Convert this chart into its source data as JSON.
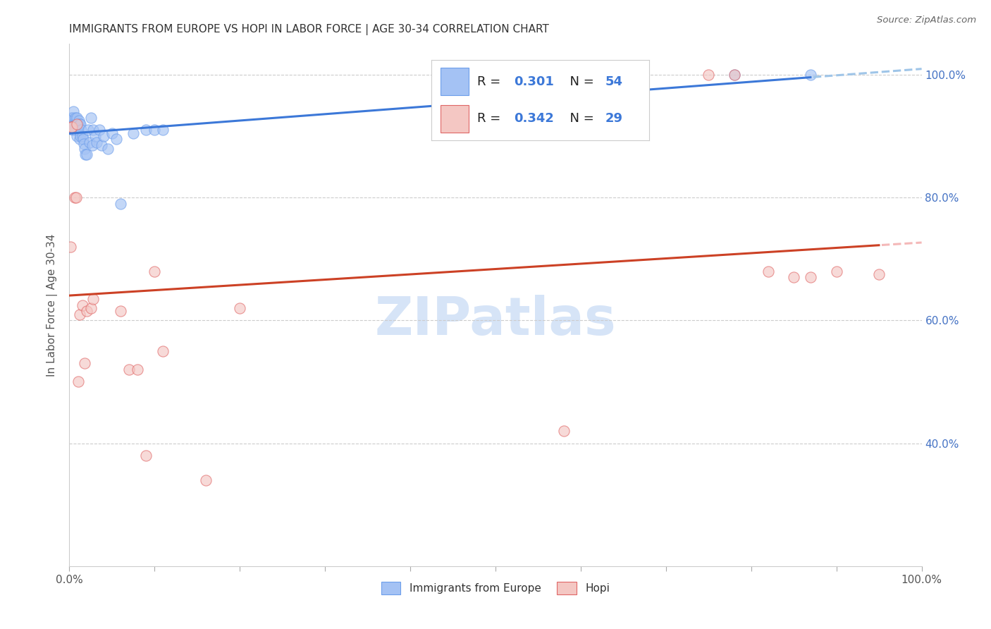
{
  "title": "IMMIGRANTS FROM EUROPE VS HOPI IN LABOR FORCE | AGE 30-34 CORRELATION CHART",
  "source": "Source: ZipAtlas.com",
  "ylabel": "In Labor Force | Age 30-34",
  "blue_label": "Immigrants from Europe",
  "pink_label": "Hopi",
  "blue_R": 0.301,
  "blue_N": 54,
  "pink_R": 0.342,
  "pink_N": 29,
  "blue_fill": "#a4c2f4",
  "blue_edge": "#6d9eeb",
  "pink_fill": "#f4c7c3",
  "pink_edge": "#e06666",
  "blue_line": "#3c78d8",
  "pink_line": "#cc4125",
  "blue_dash": "#9fc5e8",
  "pink_dash": "#f4b8b8",
  "watermark_text": "ZIPatlas",
  "watermark_color": "#d6e4f7",
  "blue_x": [
    0.001,
    0.002,
    0.002,
    0.003,
    0.003,
    0.003,
    0.004,
    0.004,
    0.005,
    0.005,
    0.005,
    0.006,
    0.006,
    0.007,
    0.007,
    0.007,
    0.008,
    0.008,
    0.009,
    0.009,
    0.01,
    0.01,
    0.011,
    0.012,
    0.012,
    0.013,
    0.013,
    0.014,
    0.015,
    0.016,
    0.017,
    0.018,
    0.019,
    0.02,
    0.022,
    0.024,
    0.025,
    0.027,
    0.028,
    0.03,
    0.032,
    0.035,
    0.038,
    0.04,
    0.045,
    0.05,
    0.055,
    0.06,
    0.075,
    0.09,
    0.1,
    0.11,
    0.78,
    0.87
  ],
  "blue_y": [
    0.92,
    0.92,
    0.93,
    0.915,
    0.92,
    0.93,
    0.91,
    0.925,
    0.92,
    0.93,
    0.94,
    0.915,
    0.92,
    0.91,
    0.92,
    0.93,
    0.91,
    0.92,
    0.9,
    0.93,
    0.91,
    0.92,
    0.925,
    0.895,
    0.92,
    0.9,
    0.92,
    0.91,
    0.9,
    0.895,
    0.888,
    0.88,
    0.87,
    0.87,
    0.91,
    0.89,
    0.93,
    0.885,
    0.91,
    0.9,
    0.89,
    0.91,
    0.885,
    0.9,
    0.88,
    0.905,
    0.895,
    0.79,
    0.905,
    0.91,
    0.91,
    0.91,
    1.0,
    1.0
  ],
  "pink_x": [
    0.001,
    0.002,
    0.003,
    0.006,
    0.008,
    0.009,
    0.01,
    0.012,
    0.015,
    0.018,
    0.02,
    0.025,
    0.028,
    0.06,
    0.07,
    0.08,
    0.09,
    0.1,
    0.11,
    0.16,
    0.2,
    0.58,
    0.75,
    0.78,
    0.82,
    0.85,
    0.87,
    0.9,
    0.95
  ],
  "pink_y": [
    0.72,
    0.915,
    0.915,
    0.8,
    0.8,
    0.92,
    0.5,
    0.61,
    0.625,
    0.53,
    0.615,
    0.62,
    0.635,
    0.615,
    0.52,
    0.52,
    0.38,
    0.68,
    0.55,
    0.34,
    0.62,
    0.42,
    1.0,
    1.0,
    0.68,
    0.67,
    0.67,
    0.68,
    0.675
  ],
  "xlim": [
    0.0,
    1.0
  ],
  "ylim": [
    0.2,
    1.05
  ],
  "yticks": [
    0.4,
    0.6,
    0.8,
    1.0
  ],
  "yticklabels": [
    "40.0%",
    "60.0%",
    "80.0%",
    "100.0%"
  ],
  "xtick_positions": [
    0.0,
    0.1,
    0.2,
    0.3,
    0.4,
    0.5,
    0.6,
    0.7,
    0.8,
    0.9,
    1.0
  ],
  "xtick_labels": [
    "0.0%",
    "",
    "",
    "",
    "",
    "",
    "",
    "",
    "",
    "",
    "100.0%"
  ],
  "grid_color": "#cccccc",
  "bg_color": "#ffffff",
  "title_color": "#333333",
  "axis_label_color": "#555555",
  "right_tick_color": "#4472c4",
  "marker_size": 120,
  "alpha": 0.65
}
